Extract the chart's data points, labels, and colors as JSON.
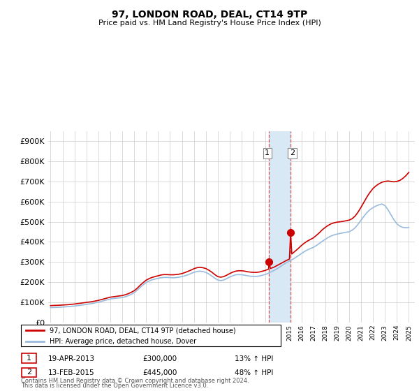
{
  "title": "97, LONDON ROAD, DEAL, CT14 9TP",
  "subtitle": "Price paid vs. HM Land Registry's House Price Index (HPI)",
  "ylabel_ticks": [
    0,
    100000,
    200000,
    300000,
    400000,
    500000,
    600000,
    700000,
    800000,
    900000
  ],
  "ylim": [
    0,
    950000
  ],
  "xlim": [
    1994.8,
    2025.5
  ],
  "legend_line1": "97, LONDON ROAD, DEAL, CT14 9TP (detached house)",
  "legend_line2": "HPI: Average price, detached house, Dover",
  "t1_x": 2013.3,
  "t1_y": 300000,
  "t2_x": 2015.1,
  "t2_y": 445000,
  "t1_date": "19-APR-2013",
  "t1_price": "£300,000",
  "t1_hpi": "13% ↑ HPI",
  "t2_date": "13-FEB-2015",
  "t2_price": "£445,000",
  "t2_hpi": "48% ↑ HPI",
  "shade_x1": 2013.3,
  "shade_x2": 2015.1,
  "note_line1": "Contains HM Land Registry data © Crown copyright and database right 2024.",
  "note_line2": "This data is licensed under the Open Government Licence v3.0.",
  "red_color": "#cc0000",
  "blue_color": "#99bbdd",
  "shade_color": "#d8e8f5",
  "hpi_red": [
    [
      1995.0,
      84000
    ],
    [
      1995.25,
      85000
    ],
    [
      1995.5,
      85500
    ],
    [
      1995.75,
      86000
    ],
    [
      1996.0,
      87000
    ],
    [
      1996.25,
      88000
    ],
    [
      1996.5,
      89000
    ],
    [
      1996.75,
      90500
    ],
    [
      1997.0,
      92000
    ],
    [
      1997.25,
      94000
    ],
    [
      1997.5,
      96000
    ],
    [
      1997.75,
      98000
    ],
    [
      1998.0,
      100000
    ],
    [
      1998.25,
      102000
    ],
    [
      1998.5,
      104000
    ],
    [
      1998.75,
      107000
    ],
    [
      1999.0,
      110000
    ],
    [
      1999.25,
      114000
    ],
    [
      1999.5,
      118000
    ],
    [
      1999.75,
      122000
    ],
    [
      2000.0,
      126000
    ],
    [
      2000.25,
      128000
    ],
    [
      2000.5,
      130000
    ],
    [
      2000.75,
      132000
    ],
    [
      2001.0,
      134000
    ],
    [
      2001.25,
      138000
    ],
    [
      2001.5,
      143000
    ],
    [
      2001.75,
      150000
    ],
    [
      2002.0,
      158000
    ],
    [
      2002.25,
      170000
    ],
    [
      2002.5,
      185000
    ],
    [
      2002.75,
      198000
    ],
    [
      2003.0,
      210000
    ],
    [
      2003.25,
      218000
    ],
    [
      2003.5,
      224000
    ],
    [
      2003.75,
      228000
    ],
    [
      2004.0,
      232000
    ],
    [
      2004.25,
      236000
    ],
    [
      2004.5,
      238000
    ],
    [
      2004.75,
      238000
    ],
    [
      2005.0,
      237000
    ],
    [
      2005.25,
      237000
    ],
    [
      2005.5,
      238000
    ],
    [
      2005.75,
      240000
    ],
    [
      2006.0,
      243000
    ],
    [
      2006.25,
      248000
    ],
    [
      2006.5,
      254000
    ],
    [
      2006.75,
      260000
    ],
    [
      2007.0,
      267000
    ],
    [
      2007.25,
      272000
    ],
    [
      2007.5,
      274000
    ],
    [
      2007.75,
      272000
    ],
    [
      2008.0,
      268000
    ],
    [
      2008.25,
      260000
    ],
    [
      2008.5,
      250000
    ],
    [
      2008.75,
      238000
    ],
    [
      2009.0,
      228000
    ],
    [
      2009.25,
      225000
    ],
    [
      2009.5,
      228000
    ],
    [
      2009.75,
      235000
    ],
    [
      2010.0,
      243000
    ],
    [
      2010.25,
      250000
    ],
    [
      2010.5,
      255000
    ],
    [
      2010.75,
      257000
    ],
    [
      2011.0,
      257000
    ],
    [
      2011.25,
      255000
    ],
    [
      2011.5,
      252000
    ],
    [
      2011.75,
      250000
    ],
    [
      2012.0,
      249000
    ],
    [
      2012.25,
      249000
    ],
    [
      2012.5,
      251000
    ],
    [
      2012.75,
      255000
    ],
    [
      2013.0,
      259000
    ],
    [
      2013.25,
      265000
    ],
    [
      2013.3,
      300000
    ],
    [
      2013.4,
      268000
    ],
    [
      2013.5,
      270000
    ],
    [
      2013.75,
      276000
    ],
    [
      2014.0,
      284000
    ],
    [
      2014.25,
      292000
    ],
    [
      2014.5,
      300000
    ],
    [
      2014.75,
      308000
    ],
    [
      2015.0,
      315000
    ],
    [
      2015.1,
      445000
    ],
    [
      2015.2,
      340000
    ],
    [
      2015.5,
      355000
    ],
    [
      2015.75,
      368000
    ],
    [
      2016.0,
      382000
    ],
    [
      2016.25,
      394000
    ],
    [
      2016.5,
      404000
    ],
    [
      2016.75,
      412000
    ],
    [
      2017.0,
      420000
    ],
    [
      2017.25,
      432000
    ],
    [
      2017.5,
      445000
    ],
    [
      2017.75,
      460000
    ],
    [
      2018.0,
      472000
    ],
    [
      2018.25,
      482000
    ],
    [
      2018.5,
      490000
    ],
    [
      2018.75,
      495000
    ],
    [
      2019.0,
      498000
    ],
    [
      2019.25,
      500000
    ],
    [
      2019.5,
      502000
    ],
    [
      2019.75,
      505000
    ],
    [
      2020.0,
      508000
    ],
    [
      2020.25,
      515000
    ],
    [
      2020.5,
      528000
    ],
    [
      2020.75,
      548000
    ],
    [
      2021.0,
      572000
    ],
    [
      2021.25,
      598000
    ],
    [
      2021.5,
      624000
    ],
    [
      2021.75,
      646000
    ],
    [
      2022.0,
      665000
    ],
    [
      2022.25,
      678000
    ],
    [
      2022.5,
      688000
    ],
    [
      2022.75,
      696000
    ],
    [
      2023.0,
      700000
    ],
    [
      2023.25,
      702000
    ],
    [
      2023.5,
      700000
    ],
    [
      2023.75,
      698000
    ],
    [
      2024.0,
      700000
    ],
    [
      2024.25,
      705000
    ],
    [
      2024.5,
      715000
    ],
    [
      2024.75,
      728000
    ],
    [
      2025.0,
      745000
    ]
  ],
  "hpi_blue": [
    [
      1995.0,
      74000
    ],
    [
      1995.25,
      75000
    ],
    [
      1995.5,
      75500
    ],
    [
      1995.75,
      76000
    ],
    [
      1996.0,
      77000
    ],
    [
      1996.25,
      78000
    ],
    [
      1996.5,
      79000
    ],
    [
      1996.75,
      80500
    ],
    [
      1997.0,
      82000
    ],
    [
      1997.25,
      84000
    ],
    [
      1997.5,
      86000
    ],
    [
      1997.75,
      88000
    ],
    [
      1998.0,
      90000
    ],
    [
      1998.25,
      92500
    ],
    [
      1998.5,
      95000
    ],
    [
      1998.75,
      98000
    ],
    [
      1999.0,
      101000
    ],
    [
      1999.25,
      105000
    ],
    [
      1999.5,
      109000
    ],
    [
      1999.75,
      113000
    ],
    [
      2000.0,
      117000
    ],
    [
      2000.25,
      119500
    ],
    [
      2000.5,
      121000
    ],
    [
      2000.75,
      122500
    ],
    [
      2001.0,
      124000
    ],
    [
      2001.25,
      128000
    ],
    [
      2001.5,
      133000
    ],
    [
      2001.75,
      140000
    ],
    [
      2002.0,
      148000
    ],
    [
      2002.25,
      160000
    ],
    [
      2002.5,
      174000
    ],
    [
      2002.75,
      187000
    ],
    [
      2003.0,
      198000
    ],
    [
      2003.25,
      206000
    ],
    [
      2003.5,
      212000
    ],
    [
      2003.75,
      216000
    ],
    [
      2004.0,
      219000
    ],
    [
      2004.25,
      222000
    ],
    [
      2004.5,
      224000
    ],
    [
      2004.75,
      224000
    ],
    [
      2005.0,
      223000
    ],
    [
      2005.25,
      222000
    ],
    [
      2005.5,
      223000
    ],
    [
      2005.75,
      225000
    ],
    [
      2006.0,
      228000
    ],
    [
      2006.25,
      232000
    ],
    [
      2006.5,
      237000
    ],
    [
      2006.75,
      243000
    ],
    [
      2007.0,
      249000
    ],
    [
      2007.25,
      253000
    ],
    [
      2007.5,
      255000
    ],
    [
      2007.75,
      253000
    ],
    [
      2008.0,
      249000
    ],
    [
      2008.25,
      241000
    ],
    [
      2008.5,
      231000
    ],
    [
      2008.75,
      220000
    ],
    [
      2009.0,
      211000
    ],
    [
      2009.25,
      208000
    ],
    [
      2009.5,
      211000
    ],
    [
      2009.75,
      218000
    ],
    [
      2010.0,
      226000
    ],
    [
      2010.25,
      232000
    ],
    [
      2010.5,
      237000
    ],
    [
      2010.75,
      238000
    ],
    [
      2011.0,
      237000
    ],
    [
      2011.25,
      235000
    ],
    [
      2011.5,
      232000
    ],
    [
      2011.75,
      230000
    ],
    [
      2012.0,
      229000
    ],
    [
      2012.25,
      229000
    ],
    [
      2012.5,
      231000
    ],
    [
      2012.75,
      235000
    ],
    [
      2013.0,
      239000
    ],
    [
      2013.25,
      245000
    ],
    [
      2013.5,
      252000
    ],
    [
      2013.75,
      260000
    ],
    [
      2014.0,
      268000
    ],
    [
      2014.25,
      278000
    ],
    [
      2014.5,
      288000
    ],
    [
      2014.75,
      297000
    ],
    [
      2015.0,
      305000
    ],
    [
      2015.25,
      313000
    ],
    [
      2015.5,
      322000
    ],
    [
      2015.75,
      332000
    ],
    [
      2016.0,
      342000
    ],
    [
      2016.25,
      352000
    ],
    [
      2016.5,
      360000
    ],
    [
      2016.75,
      367000
    ],
    [
      2017.0,
      373000
    ],
    [
      2017.25,
      382000
    ],
    [
      2017.5,
      392000
    ],
    [
      2017.75,
      403000
    ],
    [
      2018.0,
      413000
    ],
    [
      2018.25,
      422000
    ],
    [
      2018.5,
      430000
    ],
    [
      2018.75,
      435000
    ],
    [
      2019.0,
      439000
    ],
    [
      2019.25,
      442000
    ],
    [
      2019.5,
      445000
    ],
    [
      2019.75,
      448000
    ],
    [
      2020.0,
      450000
    ],
    [
      2020.25,
      458000
    ],
    [
      2020.5,
      470000
    ],
    [
      2020.75,
      488000
    ],
    [
      2021.0,
      508000
    ],
    [
      2021.25,
      528000
    ],
    [
      2021.5,
      546000
    ],
    [
      2021.75,
      560000
    ],
    [
      2022.0,
      570000
    ],
    [
      2022.25,
      578000
    ],
    [
      2022.5,
      584000
    ],
    [
      2022.75,
      588000
    ],
    [
      2023.0,
      580000
    ],
    [
      2023.25,
      560000
    ],
    [
      2023.5,
      535000
    ],
    [
      2023.75,
      510000
    ],
    [
      2024.0,
      490000
    ],
    [
      2024.25,
      478000
    ],
    [
      2024.5,
      472000
    ],
    [
      2024.75,
      470000
    ],
    [
      2025.0,
      472000
    ]
  ]
}
